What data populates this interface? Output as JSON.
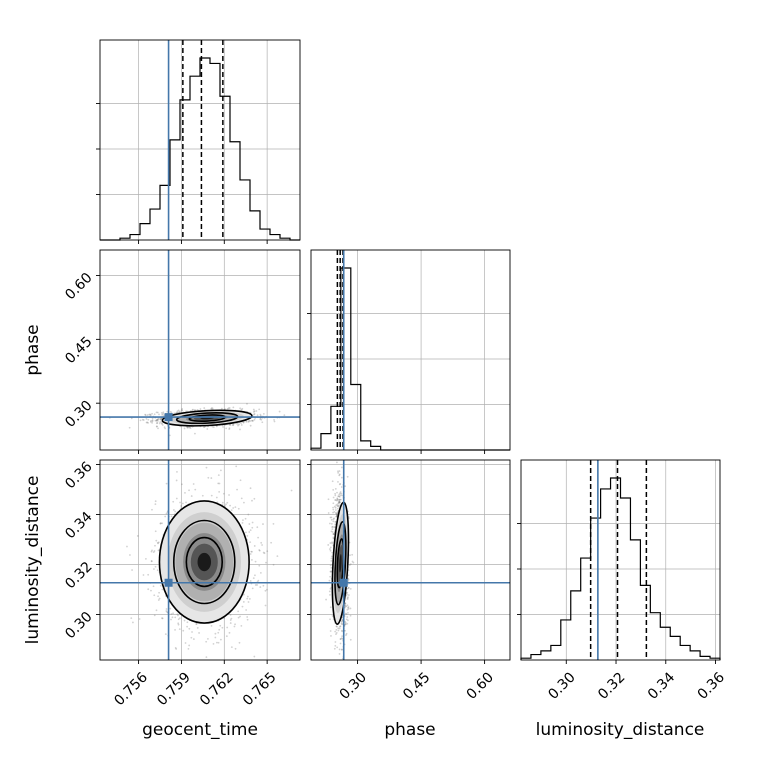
{
  "colors": {
    "truth": "#4477aa",
    "hist": "#000000",
    "grid": "#b0b0b0",
    "scatter": "#7f7f7f",
    "contour": "#000000"
  },
  "chart_data": {
    "type": "corner",
    "title": "",
    "grid": true,
    "parameters": [
      {
        "name": "geocent_time",
        "label": "geocent_time",
        "range": [
          0.7533,
          0.7673
        ],
        "ticks": [
          0.756,
          0.759,
          0.762,
          0.765
        ],
        "tick_labels": [
          "0.756",
          "0.759",
          "0.762",
          "0.765"
        ],
        "truth": 0.7581,
        "quantiles": [
          0.7591,
          0.7604,
          0.7619
        ],
        "hist_edges": [
          0.7533,
          0.754,
          0.7547,
          0.7554,
          0.7561,
          0.7568,
          0.7575,
          0.7582,
          0.7589,
          0.7596,
          0.7603,
          0.761,
          0.7617,
          0.7624,
          0.7631,
          0.7638,
          0.7645,
          0.7652,
          0.7659,
          0.7666,
          0.7673
        ],
        "hist_counts": [
          0,
          0,
          1,
          3,
          9,
          17,
          30,
          55,
          77,
          90,
          100,
          97,
          79,
          54,
          33,
          16,
          6,
          3,
          1,
          0
        ]
      },
      {
        "name": "phase",
        "label": "phase",
        "range": [
          0.19,
          0.66
        ],
        "ticks": [
          0.3,
          0.45,
          0.6
        ],
        "tick_labels": [
          "0.30",
          "0.45",
          "0.60"
        ],
        "truth": 0.2673,
        "quantiles": [
          0.2523,
          0.2589,
          0.2655
        ],
        "hist_edges": [
          0.19,
          0.2135,
          0.237,
          0.2605,
          0.284,
          0.3075,
          0.331,
          0.3545,
          0.378,
          0.4015,
          0.425,
          0.4485,
          0.472,
          0.4955,
          0.519,
          0.5425,
          0.566,
          0.5895,
          0.613,
          0.6365,
          0.66
        ],
        "hist_counts": [
          1,
          9,
          24,
          100,
          36,
          5,
          2,
          0,
          0,
          0,
          0,
          0,
          0,
          0,
          0,
          0,
          0,
          0,
          0,
          0
        ]
      },
      {
        "name": "luminosity_distance",
        "label": "luminosity_distance",
        "range": [
          0.2818,
          0.3618
        ],
        "ticks": [
          0.3,
          0.32,
          0.34,
          0.36
        ],
        "tick_labels": [
          "0.30",
          "0.32",
          "0.34",
          "0.36"
        ],
        "truth": 0.3127,
        "quantiles": [
          0.3098,
          0.3206,
          0.3322
        ],
        "hist_edges": [
          0.2818,
          0.2858,
          0.2898,
          0.2938,
          0.2978,
          0.3018,
          0.3058,
          0.3098,
          0.3138,
          0.3178,
          0.3218,
          0.3258,
          0.3298,
          0.3338,
          0.3378,
          0.3418,
          0.3458,
          0.3498,
          0.3538,
          0.3578,
          0.3618
        ],
        "hist_counts": [
          1,
          3,
          5,
          8,
          22,
          38,
          56,
          78,
          94,
          100,
          89,
          66,
          41,
          26,
          18,
          13,
          8,
          5,
          2,
          1
        ]
      }
    ],
    "density_panels": [
      {
        "x": "geocent_time",
        "y": "phase",
        "peak": [
          0.7608,
          0.265
        ],
        "spread": [
          0.00135,
          0.0075
        ],
        "correlation": 0.1,
        "contour_levels": [
          1,
          1.7,
          2.5
        ]
      },
      {
        "x": "geocent_time",
        "y": "luminosity_distance",
        "peak": [
          0.7606,
          0.321
        ],
        "spread": [
          0.00135,
          0.0105
        ],
        "correlation": 0.0,
        "contour_levels": [
          1,
          1.7,
          2.5
        ]
      },
      {
        "x": "phase",
        "y": "luminosity_distance",
        "peak": [
          0.2595,
          0.3205
        ],
        "spread": [
          0.0075,
          0.0105
        ],
        "correlation": -0.1,
        "contour_levels": [
          1,
          1.7,
          2.5
        ]
      }
    ]
  }
}
